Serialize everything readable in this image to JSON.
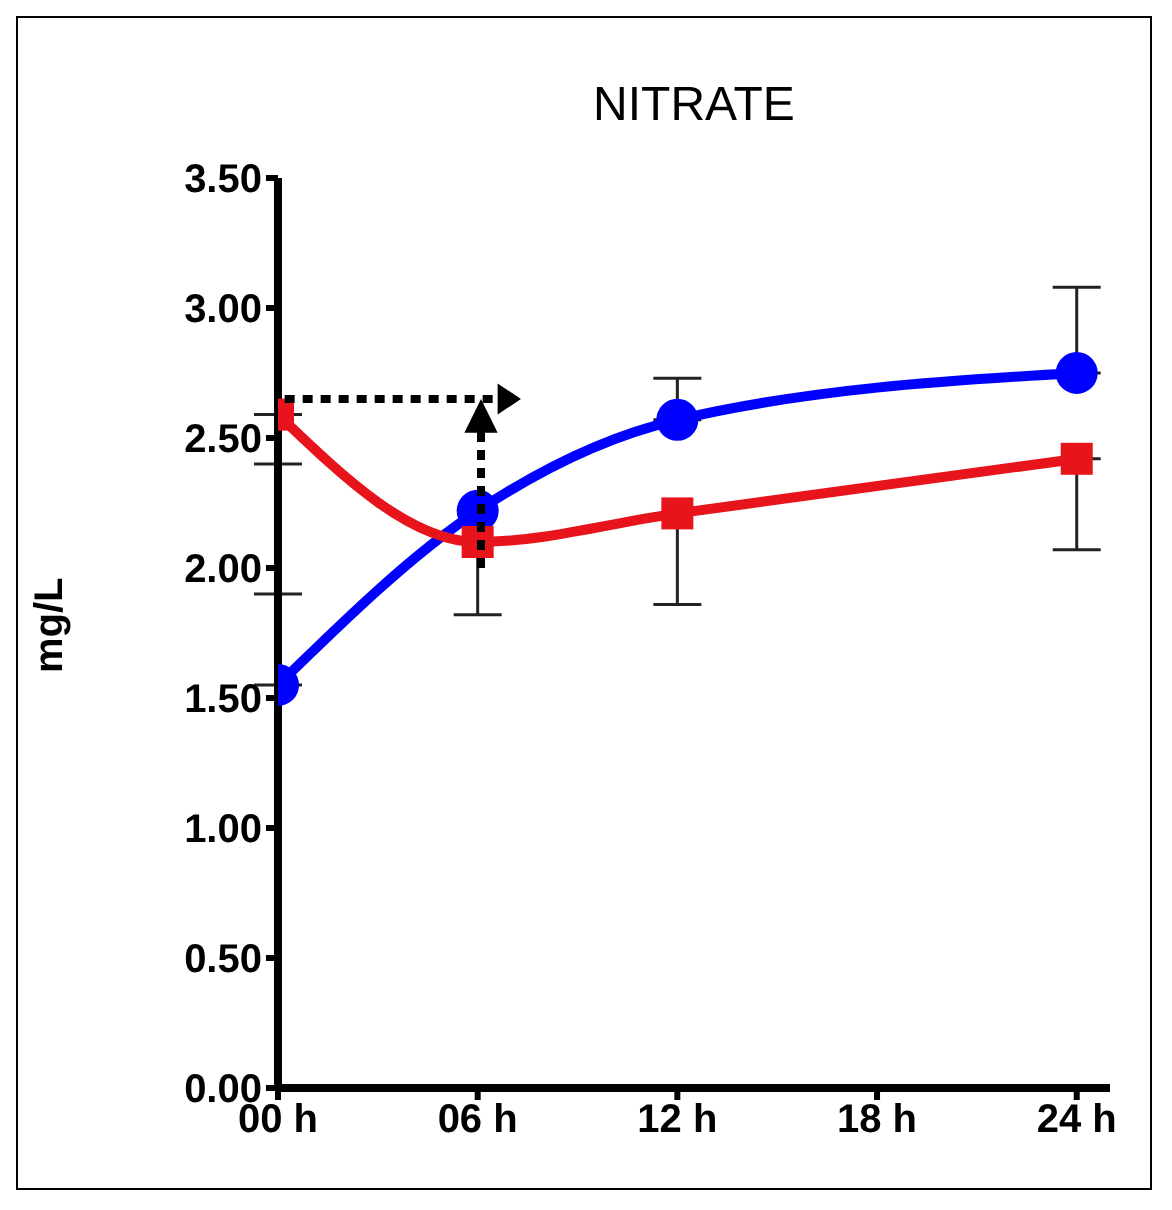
{
  "chart_data": {
    "type": "line",
    "title": "NITRATE",
    "ylabel": "mg/L",
    "x": [
      0,
      6,
      12,
      24
    ],
    "series": [
      {
        "color": "#0000ff",
        "marker": "circle",
        "values": [
          1.55,
          2.22,
          2.57,
          2.75
        ],
        "errors": [
          [
            1.55,
            1.9
          ],
          null,
          [
            2.57,
            2.73
          ],
          [
            2.75,
            3.08
          ]
        ]
      },
      {
        "color": "#e8141c",
        "marker": "square",
        "values": [
          2.59,
          2.1,
          2.21,
          2.42
        ],
        "errors": [
          [
            2.4,
            2.59
          ],
          [
            1.82,
            2.1
          ],
          [
            1.86,
            2.21
          ],
          [
            2.07,
            2.42
          ]
        ]
      }
    ],
    "xlim": [
      0,
      25
    ],
    "xticks": [
      {
        "value": 0,
        "label": "00 h"
      },
      {
        "value": 6,
        "label": "06 h"
      },
      {
        "value": 12,
        "label": "12 h"
      },
      {
        "value": 18,
        "label": "18 h"
      },
      {
        "value": 24,
        "label": "24 h"
      }
    ],
    "ylim": [
      0,
      3.5
    ],
    "yticks": [
      {
        "value": 0,
        "label": "0.00"
      },
      {
        "value": 0.5,
        "label": "0.50"
      },
      {
        "value": 1,
        "label": "1.00"
      },
      {
        "value": 1.5,
        "label": "1.50"
      },
      {
        "value": 2,
        "label": "2.00"
      },
      {
        "value": 2.5,
        "label": "2.50"
      },
      {
        "value": 3,
        "label": "3.00"
      },
      {
        "value": 3.5,
        "label": "3.50"
      }
    ],
    "grid": false,
    "legend": false
  }
}
